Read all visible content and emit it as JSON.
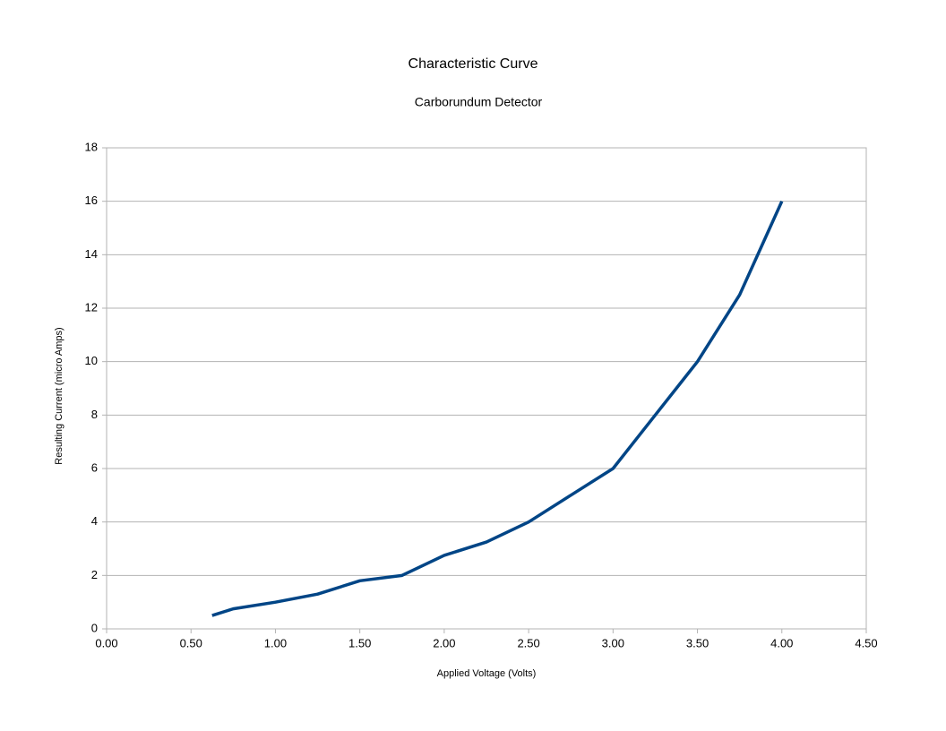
{
  "chart_data": {
    "type": "line",
    "title": "Characteristic Curve",
    "subtitle": "Carborundum Detector",
    "x_label": "Applied Voltage (Volts)",
    "y_label": "Resulting Current (micro Amps)",
    "x": [
      0.625,
      0.75,
      1.0,
      1.25,
      1.5,
      1.75,
      2.0,
      2.25,
      2.5,
      2.75,
      3.0,
      3.25,
      3.5,
      3.75,
      4.0
    ],
    "series": [
      {
        "color": "#004586",
        "values": [
          0.5,
          0.75,
          1.0,
          1.3,
          1.8,
          2.0,
          2.75,
          3.25,
          4.0,
          5.0,
          6.0,
          8.0,
          10.0,
          12.5,
          16.0
        ]
      }
    ],
    "xlim": [
      0,
      4.5
    ],
    "xticks": [
      {
        "value": 0,
        "label": "0.00"
      },
      {
        "value": 0.5,
        "label": "0.50"
      },
      {
        "value": 1,
        "label": "1.00"
      },
      {
        "value": 1.5,
        "label": "1.50"
      },
      {
        "value": 2,
        "label": "2.00"
      },
      {
        "value": 2.5,
        "label": "2.50"
      },
      {
        "value": 3,
        "label": "3.00"
      },
      {
        "value": 3.5,
        "label": "3.50"
      },
      {
        "value": 4,
        "label": "4.00"
      },
      {
        "value": 4.5,
        "label": "4.50"
      }
    ],
    "ylim": [
      0,
      18
    ],
    "yticks": [
      0,
      2,
      4,
      6,
      8,
      10,
      12,
      14,
      16,
      18
    ],
    "grid": true
  }
}
